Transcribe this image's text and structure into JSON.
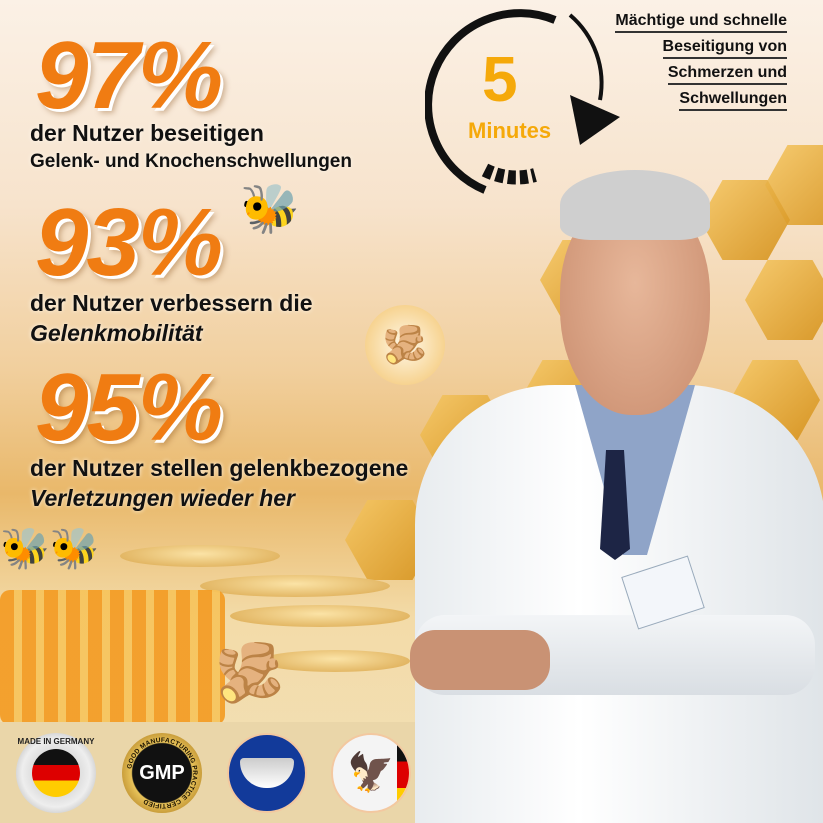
{
  "stats": [
    {
      "value": "97%",
      "line1": "der Nutzer beseitigen",
      "line2": "Gelenk- und Knochenschwellungen"
    },
    {
      "value": "93%",
      "line1": "der Nutzer verbessern die",
      "line2": "Gelenkmobilität"
    },
    {
      "value": "95%",
      "line1": "der Nutzer stellen gelenkbezogene",
      "line2": "Verletzungen wieder her"
    }
  ],
  "timer": {
    "number": "5",
    "unit": "Minutes",
    "color": "#f5a90a"
  },
  "claim": [
    "Mächtige und schnelle",
    "Beseitigung von",
    "Schmerzen und",
    "Schwellungen"
  ],
  "badges": {
    "made_in_germany": "MADE IN GERMANY",
    "gmp": "GMP",
    "gmp_ring": "GOOD MANUFACTURING PRACTICE CERTIFIED"
  },
  "colors": {
    "accent": "#f07c12",
    "honey": "#e9b86a"
  }
}
